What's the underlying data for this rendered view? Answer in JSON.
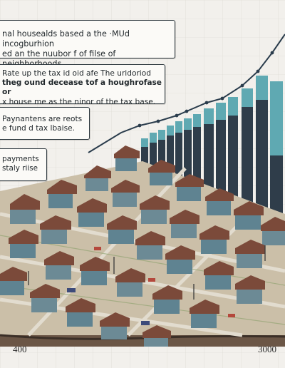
{
  "callouts": {
    "top": {
      "line1": "nal housealds based a the ·MUd incogburhion",
      "line2": "ed an the nuubor f of filse of neighborhoods."
    },
    "second": {
      "line1": "Rate up  the tax id oid afe  The uridoriod",
      "line2": "theg ound decease tof a houghrofase or",
      "line3": "x house me as the ninor of the tax base."
    },
    "third": {
      "line1": "Paynantens are reots",
      "line2": "e fund d tax  lbaise."
    },
    "fourth": {
      "line1": "payments",
      "line2": "staly riise"
    }
  },
  "axis": {
    "left_label": "400",
    "right_label": "3000"
  },
  "colors": {
    "bar_teal": "#5fa9b2",
    "bar_dark": "#2f3d4a",
    "trend_line": "#2a3c4c",
    "ground": "#cbbfa8",
    "soil": "#3b2f27"
  }
}
